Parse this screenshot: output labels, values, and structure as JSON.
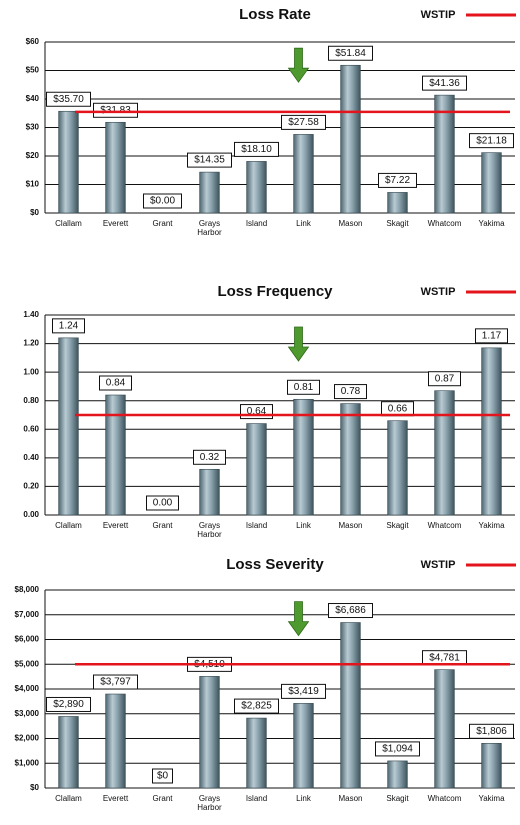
{
  "chart_data": [
    {
      "type": "bar",
      "title": "Loss Rate",
      "categories": [
        "Clallam",
        "Everett",
        "Grant",
        "Grays Harbor",
        "Island",
        "Link",
        "Mason",
        "Skagit",
        "Whatcom",
        "Yakima"
      ],
      "values": [
        35.7,
        31.83,
        0.0,
        14.35,
        18.1,
        27.58,
        51.84,
        7.22,
        41.36,
        21.18
      ],
      "value_labels": [
        "$35.70",
        "$31.83",
        "$0.00",
        "$14.35",
        "$18.10",
        "$27.58",
        "$51.84",
        "$7.22",
        "$41.36",
        "$21.18"
      ],
      "color": "#7f97a3",
      "reference": {
        "name": "WSTIP",
        "value": 35.5,
        "color": "#e3141b"
      },
      "ylim": [
        0,
        60
      ],
      "yticks": [
        {
          "value": 0,
          "label": "$0"
        },
        {
          "value": 10,
          "label": "$10"
        },
        {
          "value": 20,
          "label": "$20"
        },
        {
          "value": 30,
          "label": "$30"
        },
        {
          "value": 40,
          "label": "$40"
        },
        {
          "value": 50,
          "label": "$50"
        },
        {
          "value": 60,
          "label": "$60"
        }
      ],
      "grid": true
    },
    {
      "type": "bar",
      "title": "Loss Frequency",
      "categories": [
        "Clallam",
        "Everett",
        "Grant",
        "Grays Harbor",
        "Island",
        "Link",
        "Mason",
        "Skagit",
        "Whatcom",
        "Yakima"
      ],
      "values": [
        1.24,
        0.84,
        0.0,
        0.32,
        0.64,
        0.81,
        0.78,
        0.66,
        0.87,
        1.17
      ],
      "value_labels": [
        "1.24",
        "0.84",
        "0.00",
        "0.32",
        "0.64",
        "0.81",
        "0.78",
        "0.66",
        "0.87",
        "1.17"
      ],
      "color": "#7f97a3",
      "reference": {
        "name": "WSTIP",
        "value": 0.7,
        "color": "#e3141b"
      },
      "ylim": [
        0,
        1.4
      ],
      "yticks": [
        {
          "value": 0,
          "label": "0.00"
        },
        {
          "value": 0.2,
          "label": "0.20"
        },
        {
          "value": 0.4,
          "label": "0.40"
        },
        {
          "value": 0.6,
          "label": "0.60"
        },
        {
          "value": 0.8,
          "label": "0.80"
        },
        {
          "value": 1,
          "label": "1.00"
        },
        {
          "value": 1.2,
          "label": "1.20"
        },
        {
          "value": 1.4,
          "label": "1.40"
        }
      ],
      "grid": true
    },
    {
      "type": "bar",
      "title": "Loss Severity",
      "categories": [
        "Clallam",
        "Everett",
        "Grant",
        "Grays Harbor",
        "Island",
        "Link",
        "Mason",
        "Skagit",
        "Whatcom",
        "Yakima"
      ],
      "values": [
        2890,
        3797,
        0,
        4510,
        2825,
        3419,
        6686,
        1094,
        4781,
        1806
      ],
      "value_labels": [
        "$2,890",
        "$3,797",
        "$0",
        "$4,510",
        "$2,825",
        "$3,419",
        "$6,686",
        "$1,094",
        "$4,781",
        "$1,806"
      ],
      "color": "#7f97a3",
      "reference": {
        "name": "WSTIP",
        "value": 5000,
        "color": "#e3141b"
      },
      "ylim": [
        0,
        8000
      ],
      "yticks": [
        {
          "value": 0,
          "label": "$0"
        },
        {
          "value": 1000,
          "label": "$1,000"
        },
        {
          "value": 2000,
          "label": "$2,000"
        },
        {
          "value": 3000,
          "label": "$3,000"
        },
        {
          "value": 4000,
          "label": "$4,000"
        },
        {
          "value": 5000,
          "label": "$5,000"
        },
        {
          "value": 6000,
          "label": "$6,000"
        },
        {
          "value": 7000,
          "label": "$7,000"
        },
        {
          "value": 8000,
          "label": "$8,000"
        }
      ],
      "grid": true
    }
  ]
}
